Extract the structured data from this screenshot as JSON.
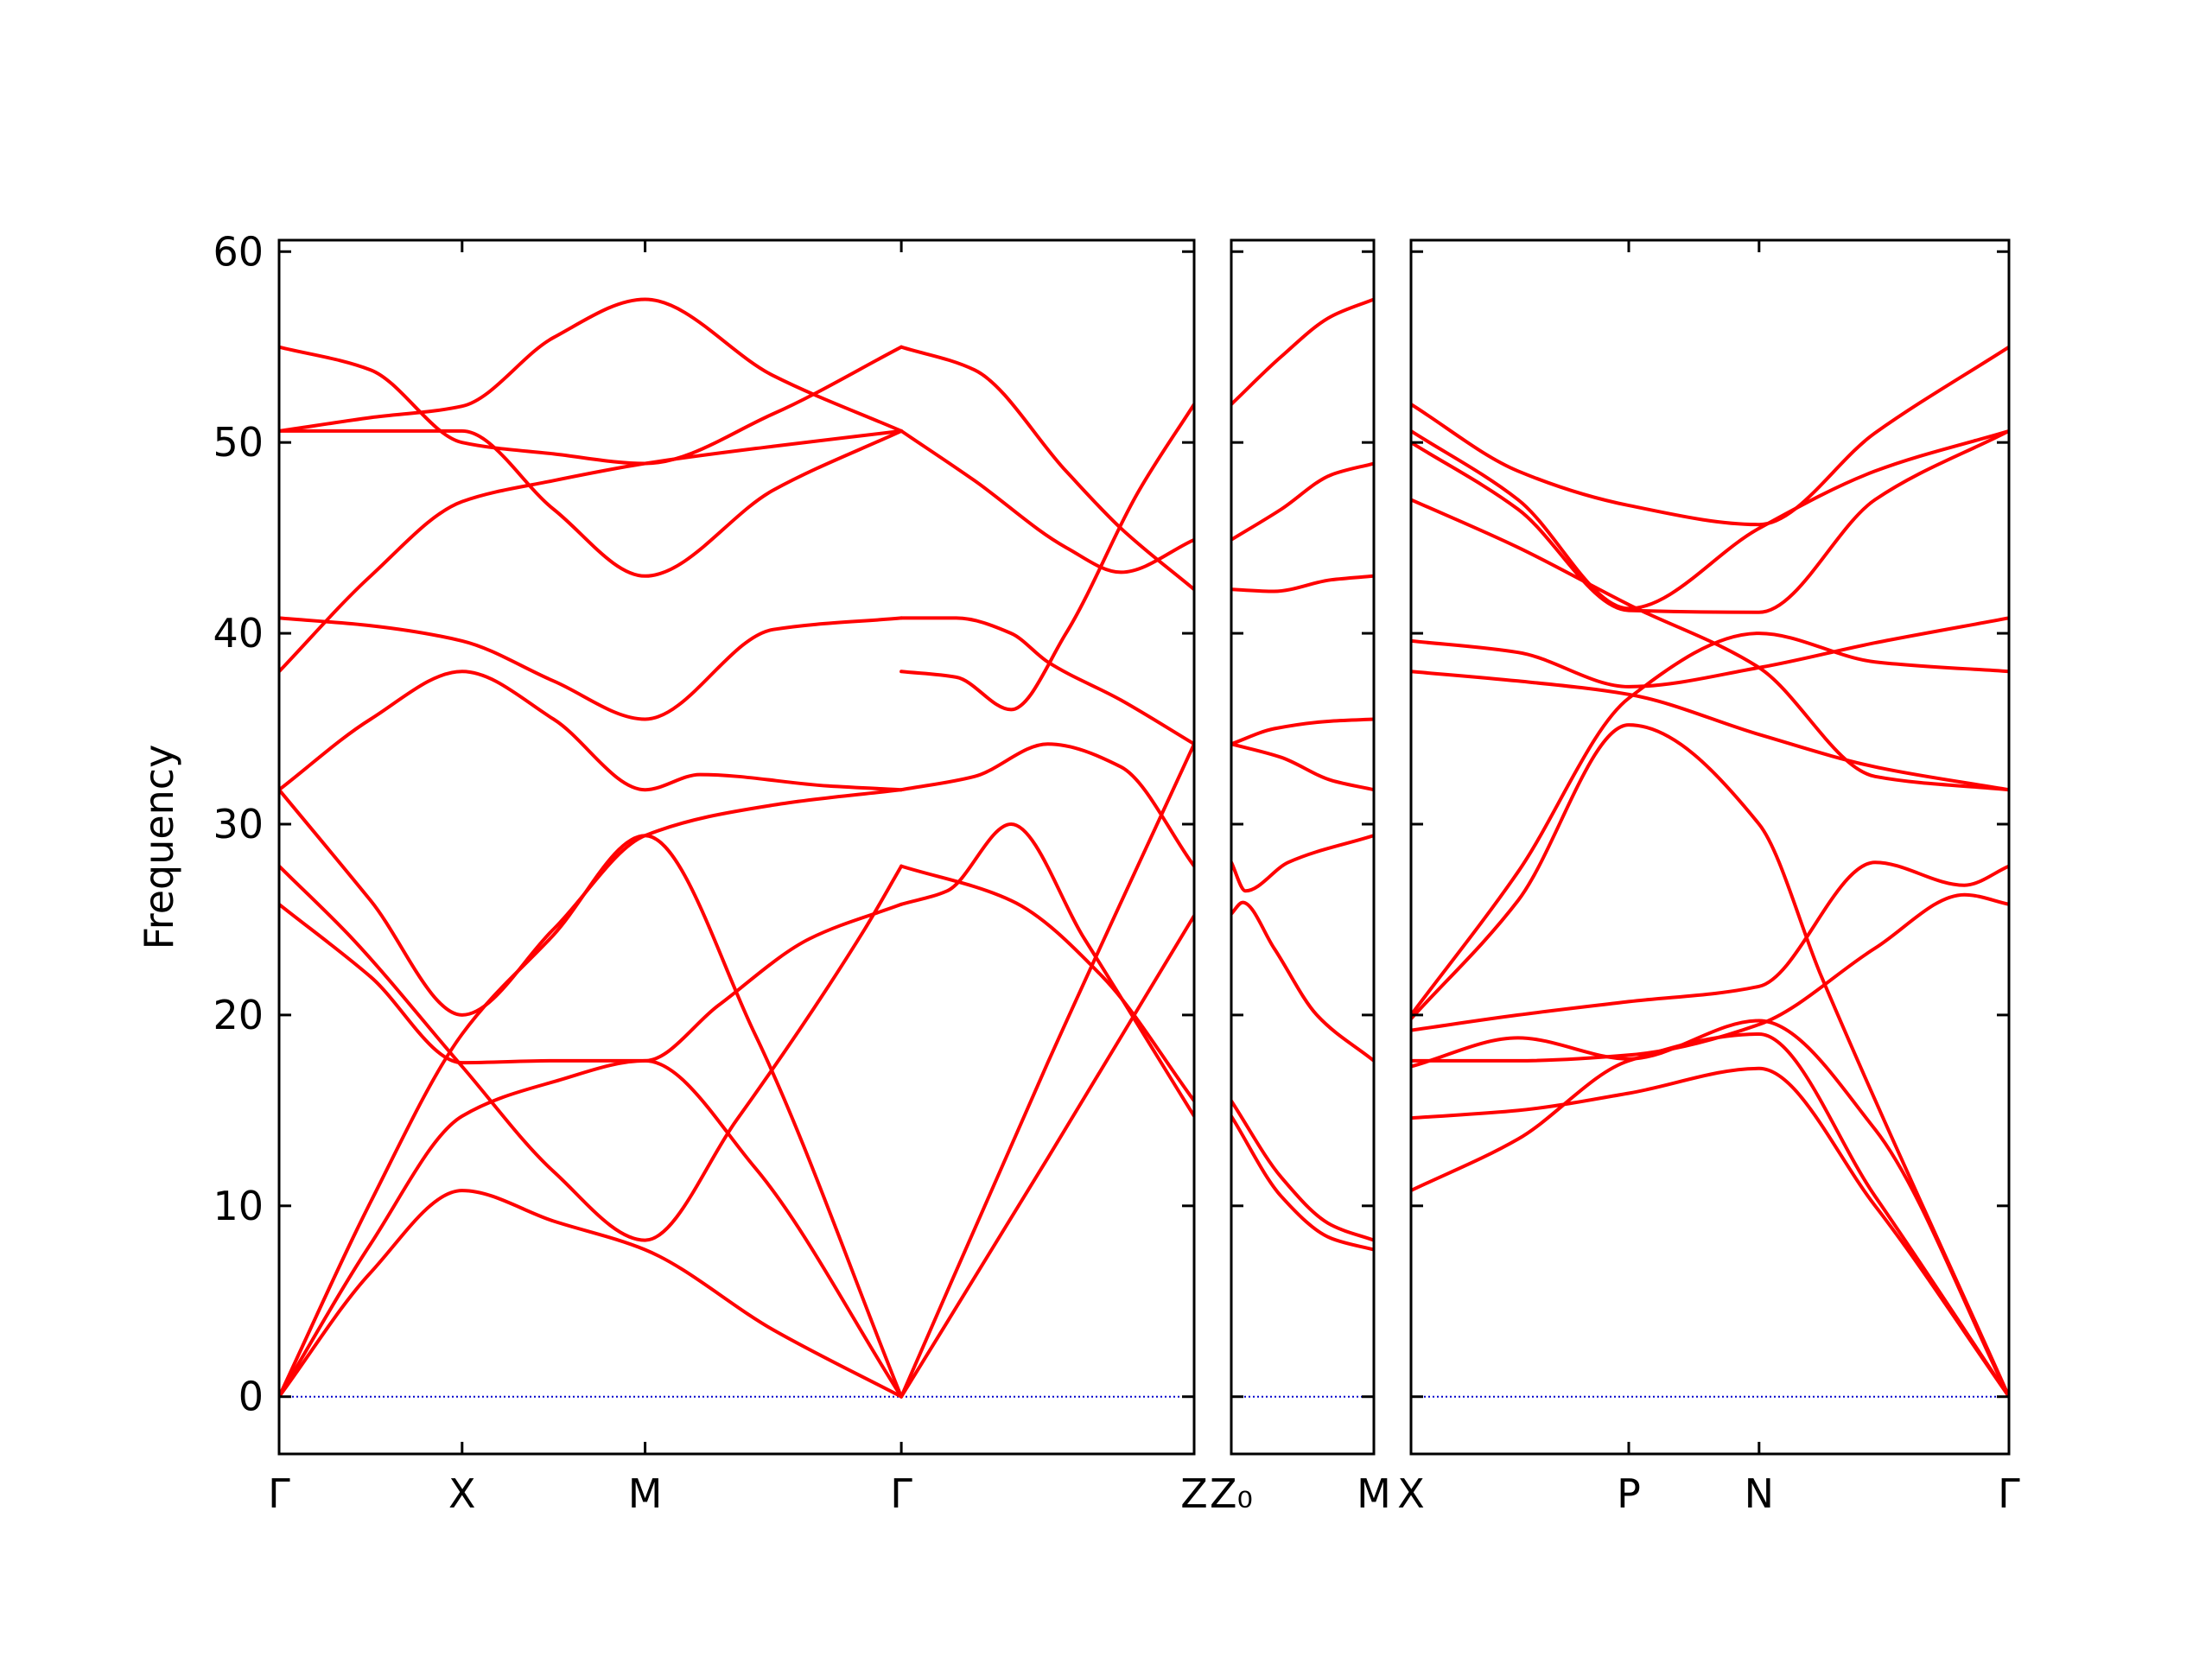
{
  "chart_data": {
    "type": "line",
    "ylabel": "Frequency",
    "ylim": [
      -3,
      60.6
    ],
    "yticks": [
      0,
      10,
      20,
      30,
      40,
      50,
      60
    ],
    "colors": {
      "band": "#ff0000",
      "zero_line": "#0000cc",
      "axes": "#000000"
    },
    "panels": [
      {
        "name": "path-1",
        "xlim": [
          0,
          5
        ],
        "xticks": [
          {
            "x": 0,
            "label": "Γ"
          },
          {
            "x": 1,
            "label": "X"
          },
          {
            "x": 2,
            "label": "M"
          },
          {
            "x": 3.4,
            "label": "Γ"
          },
          {
            "x": 5,
            "label": "Z"
          }
        ],
        "bands": [
          {
            "x": [
              0,
              0.5,
              1,
              1.5,
              2,
              2.7,
              3.4
            ],
            "y": [
              0,
              6.5,
              10.8,
              9.2,
              7.7,
              3.5,
              0
            ]
          },
          {
            "x": [
              0,
              0.5,
              1,
              1.5,
              2,
              2.6,
              3.4
            ],
            "y": [
              0,
              8.0,
              14.7,
              16.5,
              17.6,
              12.0,
              0
            ]
          },
          {
            "x": [
              0,
              0.5,
              1,
              1.5,
              2,
              2.6,
              3.4
            ],
            "y": [
              0,
              10.2,
              19.0,
              24.2,
              29.4,
              19.0,
              0
            ]
          },
          {
            "x": [
              0,
              0.5,
              1,
              1.5,
              2,
              2.4,
              2.9,
              3.4
            ],
            "y": [
              25.8,
              22.0,
              17.5,
              17.6,
              17.6,
              20.5,
              24.0,
              25.8
            ]
          },
          {
            "x": [
              0,
              0.4,
              1,
              1.5,
              2,
              2.5,
              3.2,
              3.4
            ],
            "y": [
              27.8,
              24.0,
              17.3,
              11.8,
              8.2,
              14.5,
              24.5,
              27.8
            ]
          },
          {
            "x": [
              0,
              0.5,
              1,
              1.5,
              2,
              2.7,
              3.4
            ],
            "y": [
              31.8,
              26.0,
              20.0,
              24.5,
              29.4,
              31.0,
              31.8
            ]
          },
          {
            "x": [
              0,
              0.5,
              1,
              1.5,
              2,
              2.3,
              3.0,
              3.4
            ],
            "y": [
              31.8,
              35.5,
              38.0,
              35.5,
              31.8,
              32.6,
              32.0,
              31.8
            ]
          },
          {
            "x": [
              0,
              0.5,
              1,
              1.5,
              2,
              2.7,
              3.4
            ],
            "y": [
              38.0,
              43.0,
              46.9,
              48.0,
              48.9,
              49.8,
              50.6
            ]
          },
          {
            "x": [
              0,
              0.5,
              1,
              1.5,
              2,
              2.7,
              3.4
            ],
            "y": [
              40.8,
              40.4,
              39.6,
              37.5,
              35.5,
              40.2,
              40.8
            ]
          },
          {
            "x": [
              0,
              0.5,
              1,
              1.5,
              2,
              2.7,
              3.4
            ],
            "y": [
              50.6,
              50.6,
              50.6,
              46.5,
              43.0,
              47.5,
              50.6
            ]
          },
          {
            "x": [
              0,
              0.5,
              1,
              1.5,
              2,
              2.7,
              3.4
            ],
            "y": [
              50.6,
              51.3,
              51.9,
              55.5,
              57.5,
              53.5,
              50.6
            ]
          },
          {
            "x": [
              0,
              0.5,
              1,
              1.5,
              2,
              2.7,
              3.4
            ],
            "y": [
              55.0,
              53.8,
              50.0,
              49.4,
              48.9,
              51.5,
              55.0
            ]
          },
          {
            "x": [
              3.4,
              4.2,
              5
            ],
            "y": [
              0,
              12.5,
              25.2
            ]
          },
          {
            "x": [
              3.4,
              4.2,
              5
            ],
            "y": [
              0,
              17.5,
              34.2
            ]
          },
          {
            "x": [
              3.4,
              3.65,
              4.0,
              4.4,
              5
            ],
            "y": [
              25.8,
              26.5,
              30.0,
              24.0,
              14.7
            ]
          },
          {
            "x": [
              3.4,
              4.0,
              4.5,
              5
            ],
            "y": [
              27.8,
              26.0,
              22.0,
              15.5
            ]
          },
          {
            "x": [
              3.4,
              3.8,
              4.2,
              4.6,
              5
            ],
            "y": [
              31.8,
              32.5,
              34.2,
              33.0,
              27.8
            ]
          },
          {
            "x": [
              3.4,
              3.7,
              4.0,
              4.2,
              4.6,
              5
            ],
            "y": [
              40.8,
              40.8,
              40.0,
              38.5,
              36.5,
              34.2
            ]
          },
          {
            "x": [
              3.4,
              3.7,
              4.0,
              4.3,
              4.7,
              5
            ],
            "y": [
              38.0,
              37.7,
              36.0,
              40.0,
              47.5,
              52.0
            ]
          },
          {
            "x": [
              3.4,
              3.8,
              4.3,
              4.6,
              5
            ],
            "y": [
              50.6,
              48.0,
              44.5,
              43.2,
              44.9
            ]
          },
          {
            "x": [
              3.4,
              3.8,
              4.3,
              4.6,
              5
            ],
            "y": [
              55.0,
              53.8,
              48.5,
              45.5,
              42.3
            ]
          }
        ]
      },
      {
        "name": "path-2",
        "xlim": [
          0,
          1
        ],
        "xticks": [
          {
            "x": 0,
            "label": "Z₀"
          },
          {
            "x": 1,
            "label": "M"
          }
        ],
        "bands": [
          {
            "x": [
              0,
              0.35,
              0.7,
              1
            ],
            "y": [
              14.7,
              10.5,
              8.3,
              7.7
            ]
          },
          {
            "x": [
              0,
              0.35,
              0.7,
              1
            ],
            "y": [
              15.5,
              11.5,
              9.0,
              8.2
            ]
          },
          {
            "x": [
              0,
              0.08,
              0.3,
              0.6,
              1
            ],
            "y": [
              25.3,
              25.9,
              23.5,
              20.0,
              17.6
            ]
          },
          {
            "x": [
              0,
              0.1,
              0.4,
              1
            ],
            "y": [
              28.0,
              26.5,
              28.0,
              29.4
            ]
          },
          {
            "x": [
              0,
              0.35,
              0.7,
              1
            ],
            "y": [
              34.2,
              33.5,
              32.3,
              31.8
            ]
          },
          {
            "x": [
              0,
              0.3,
              0.7,
              1
            ],
            "y": [
              34.2,
              35.0,
              35.4,
              35.5
            ]
          },
          {
            "x": [
              0,
              0.3,
              0.7,
              1
            ],
            "y": [
              42.3,
              42.2,
              42.8,
              43.0
            ]
          },
          {
            "x": [
              0,
              0.35,
              0.7,
              1
            ],
            "y": [
              44.9,
              46.5,
              48.3,
              48.9
            ]
          },
          {
            "x": [
              0,
              0.35,
              0.7,
              1
            ],
            "y": [
              52.0,
              54.5,
              56.6,
              57.5
            ]
          }
        ]
      },
      {
        "name": "path-3",
        "xlim": [
          0,
          3.35
        ],
        "xticks": [
          {
            "x": 0,
            "label": "X"
          },
          {
            "x": 1.22,
            "label": "P"
          },
          {
            "x": 1.95,
            "label": "N"
          },
          {
            "x": 3.35,
            "label": "Γ"
          }
        ],
        "bands": [
          {
            "x": [
              0,
              0.6,
              1.22,
              1.95,
              2.6,
              3.35
            ],
            "y": [
              10.8,
              13.5,
              17.6,
              19.0,
              10.5,
              0
            ]
          },
          {
            "x": [
              0,
              0.6,
              1.22,
              1.95,
              2.6,
              3.35
            ],
            "y": [
              14.6,
              15.0,
              15.9,
              17.2,
              10.0,
              0
            ]
          },
          {
            "x": [
              0,
              0.6,
              1.22,
              1.95,
              2.6,
              3.35
            ],
            "y": [
              17.3,
              18.8,
              17.7,
              19.7,
              14.0,
              0
            ]
          },
          {
            "x": [
              0,
              0.6,
              1.22,
              1.95,
              2.6,
              3.1,
              3.35
            ],
            "y": [
              17.6,
              17.6,
              17.9,
              19.5,
              23.5,
              26.3,
              25.8
            ]
          },
          {
            "x": [
              0,
              0.6,
              1.22,
              1.95,
              2.6,
              3.1,
              3.35
            ],
            "y": [
              19.2,
              20.0,
              20.7,
              21.5,
              28.0,
              26.8,
              27.8
            ]
          },
          {
            "x": [
              0,
              0.6,
              1.22,
              1.95,
              2.3,
              3.35
            ],
            "y": [
              19.8,
              26.0,
              35.2,
              30.0,
              22.0,
              0
            ]
          },
          {
            "x": [
              0,
              0.6,
              1.22,
              1.95,
              2.6,
              3.35
            ],
            "y": [
              20.0,
              27.5,
              36.6,
              40.0,
              38.5,
              38.0
            ]
          },
          {
            "x": [
              0,
              0.6,
              1.22,
              1.95,
              2.6,
              3.35
            ],
            "y": [
              38.0,
              37.5,
              36.8,
              34.7,
              33.0,
              31.8
            ]
          },
          {
            "x": [
              0,
              0.6,
              1.22,
              1.95,
              2.6,
              3.35
            ],
            "y": [
              39.6,
              39.0,
              37.2,
              38.2,
              39.5,
              40.8
            ]
          },
          {
            "x": [
              0,
              0.6,
              1.22,
              1.95,
              2.6,
              3.35
            ],
            "y": [
              47.0,
              44.5,
              41.5,
              38.2,
              32.5,
              31.8
            ]
          },
          {
            "x": [
              0,
              0.6,
              1.22,
              1.95,
              2.6,
              3.35
            ],
            "y": [
              50.0,
              46.5,
              41.2,
              41.1,
              47.0,
              50.6
            ]
          },
          {
            "x": [
              0,
              0.6,
              1.22,
              1.95,
              2.6,
              3.35
            ],
            "y": [
              50.6,
              47.0,
              41.3,
              45.5,
              48.5,
              50.6
            ]
          },
          {
            "x": [
              0,
              0.6,
              1.22,
              1.95,
              2.6,
              3.35
            ],
            "y": [
              52.0,
              48.5,
              46.7,
              45.7,
              50.5,
              55.0
            ]
          }
        ]
      }
    ]
  }
}
